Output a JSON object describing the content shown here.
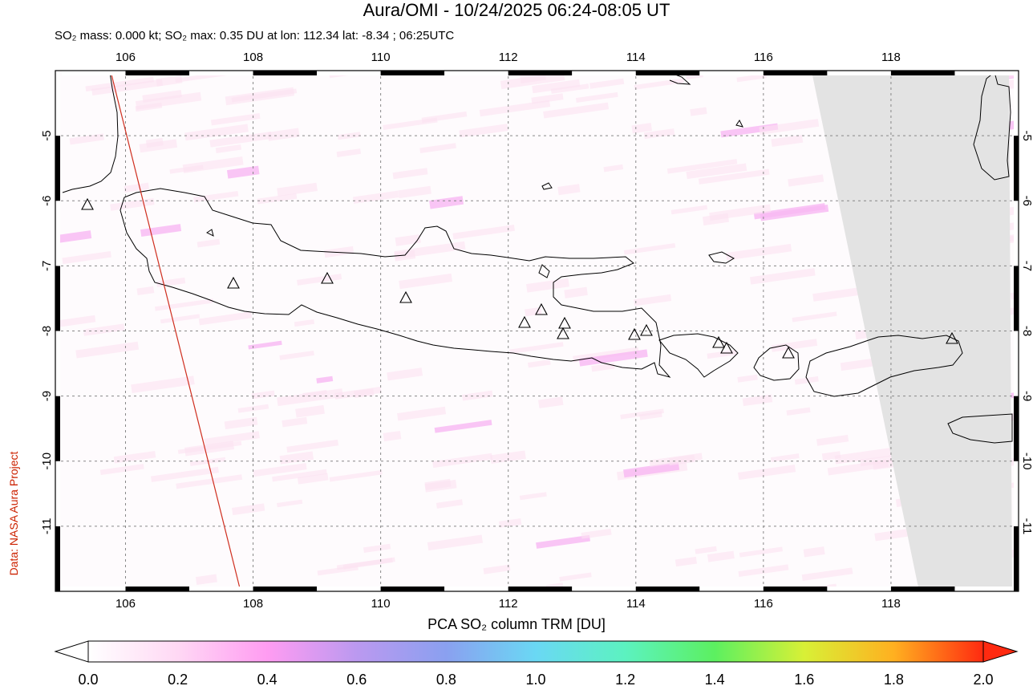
{
  "title": "Aura/OMI - 10/24/2025 06:24-08:05 UT",
  "subtitle": "SO₂ mass: 0.000 kt; SO₂ max: 0.35 DU at lon: 112.34 lat: -8.34 ; 06:25UTC",
  "credit": "Data: NASA Aura Project",
  "map": {
    "lon_range": [
      104.9,
      120.0
    ],
    "lat_range": [
      -12.0,
      -4.0
    ],
    "lon_ticks": [
      "106",
      "108",
      "110",
      "112",
      "114",
      "116",
      "118"
    ],
    "lat_ticks": [
      "-5",
      "-6",
      "-7",
      "-8",
      "-9",
      "-10",
      "-11"
    ],
    "no_data_color": "#e3e3e3",
    "orbit_line_color": "#d03020",
    "volcano_markers": "triangle"
  },
  "colorbar": {
    "title": "PCA SO₂ column TRM [DU]",
    "range": [
      0.0,
      2.0
    ],
    "tick_labels": [
      "0.0",
      "0.2",
      "0.4",
      "0.6",
      "0.8",
      "1.0",
      "1.2",
      "1.4",
      "1.6",
      "1.8",
      "2.0"
    ],
    "colors": [
      "#ffffff",
      "#ffd8f4",
      "#ff9cf2",
      "#bb99f0",
      "#8aa0f0",
      "#6ad8f4",
      "#5cf2c0",
      "#5cf060",
      "#d8f036",
      "#ffb020",
      "#ff2a10"
    ]
  }
}
